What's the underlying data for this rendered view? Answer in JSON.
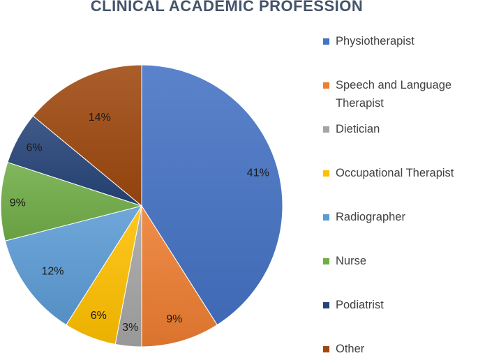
{
  "chart_data": {
    "type": "pie",
    "title": "CLINICAL ACADEMIC PROFESSION",
    "legend_position": "right",
    "slices": [
      {
        "label": "Physiotherapist",
        "value": 41,
        "value_label": "41%",
        "color": "#4472c4"
      },
      {
        "label": "Speech and Language Therapist",
        "value": 9,
        "value_label": "9%",
        "color": "#ed7d31"
      },
      {
        "label": "Dietician",
        "value": 3,
        "value_label": "3%",
        "color": "#a5a5a5"
      },
      {
        "label": "Occupational Therapist",
        "value": 6,
        "value_label": "6%",
        "color": "#ffc000"
      },
      {
        "label": "Radiographer",
        "value": 12,
        "value_label": "12%",
        "color": "#5b9bd5"
      },
      {
        "label": "Nurse",
        "value": 9,
        "value_label": "9%",
        "color": "#70ad47"
      },
      {
        "label": "Podiatrist",
        "value": 6,
        "value_label": "6%",
        "color": "#264478"
      },
      {
        "label": "Other",
        "value": 14,
        "value_label": "14%",
        "color": "#9e480e"
      }
    ]
  }
}
